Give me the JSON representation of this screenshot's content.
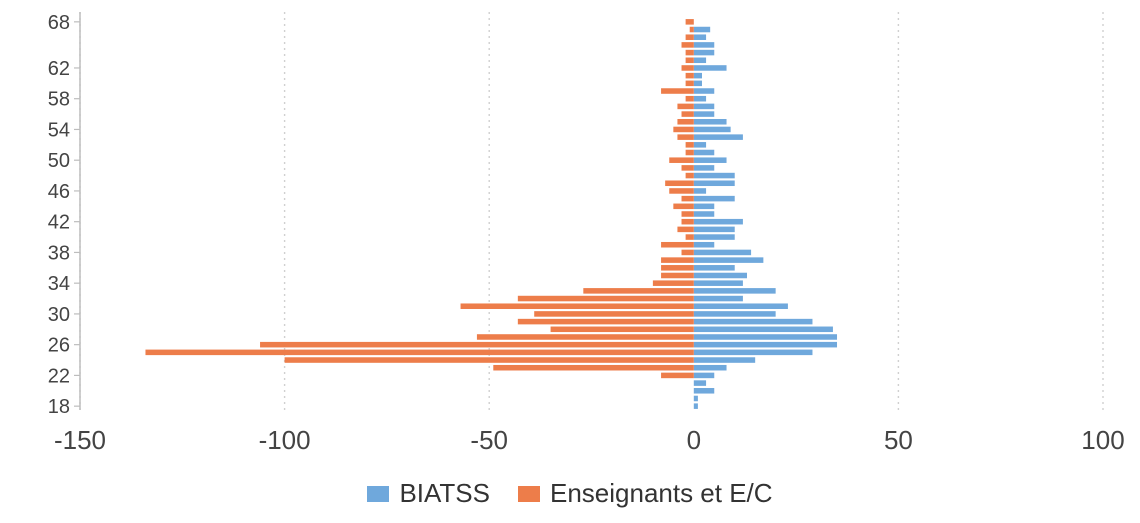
{
  "chart_data": {
    "type": "bar",
    "orientation": "horizontal",
    "stacked": "diverging",
    "categories": [
      18,
      19,
      20,
      21,
      22,
      23,
      24,
      25,
      26,
      27,
      28,
      29,
      30,
      31,
      32,
      33,
      34,
      35,
      36,
      37,
      38,
      39,
      40,
      41,
      42,
      43,
      44,
      45,
      46,
      47,
      48,
      49,
      50,
      51,
      52,
      53,
      54,
      55,
      56,
      57,
      58,
      59,
      60,
      61,
      62,
      63,
      64,
      65,
      66,
      67,
      68
    ],
    "y_tick_labels": [
      "18",
      "22",
      "26",
      "30",
      "34",
      "38",
      "42",
      "46",
      "50",
      "54",
      "58",
      "62",
      "68"
    ],
    "x_ticks": [
      -150,
      -100,
      -50,
      0,
      50,
      100
    ],
    "xlim": [
      -150,
      100
    ],
    "grid": "vertical-dotted",
    "legend_position": "bottom",
    "series": [
      {
        "name": "BIATSS",
        "color": "#6fa8dc",
        "values": [
          1,
          1,
          5,
          3,
          5,
          8,
          15,
          29,
          35,
          35,
          34,
          29,
          20,
          23,
          12,
          20,
          12,
          13,
          10,
          17,
          14,
          5,
          10,
          10,
          12,
          5,
          5,
          10,
          3,
          10,
          10,
          5,
          8,
          5,
          3,
          12,
          9,
          8,
          5,
          5,
          3,
          5,
          2,
          2,
          8,
          3,
          5,
          5,
          3,
          4,
          0
        ]
      },
      {
        "name": "Enseignants et E/C",
        "color": "#ed7d4a",
        "values": [
          0,
          0,
          0,
          0,
          -8,
          -49,
          -100,
          -134,
          -106,
          -53,
          -35,
          -43,
          -39,
          -57,
          -43,
          -27,
          -10,
          -8,
          -8,
          -8,
          -3,
          -8,
          -2,
          -4,
          -3,
          -3,
          -5,
          -3,
          -6,
          -7,
          -2,
          -3,
          -6,
          -2,
          -2,
          -4,
          -5,
          -4,
          -3,
          -4,
          -2,
          -8,
          -2,
          -2,
          -3,
          -2,
          -2,
          -3,
          -2,
          -1,
          -2
        ]
      }
    ]
  }
}
